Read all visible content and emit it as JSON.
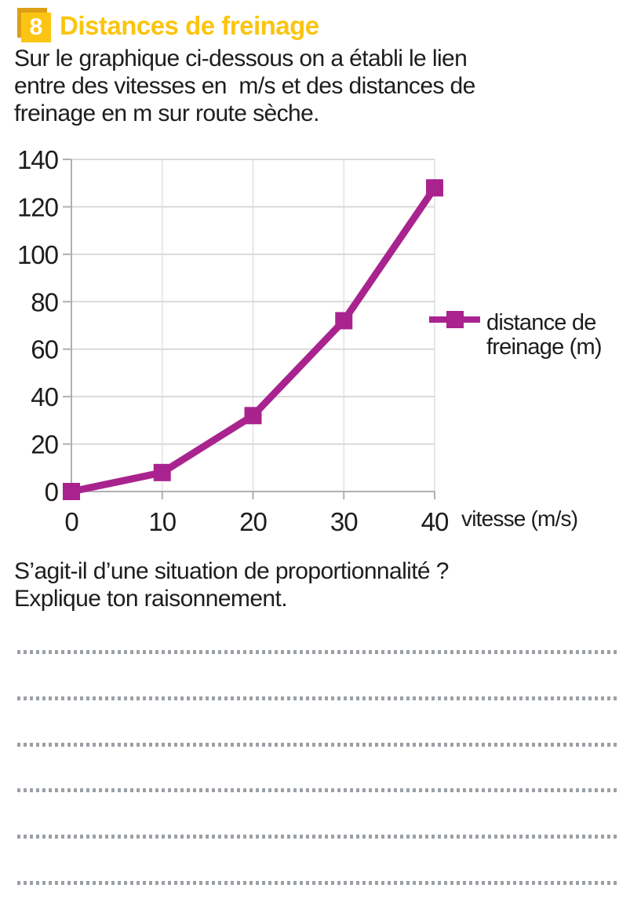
{
  "header": {
    "number": "8",
    "title": "Distances de freinage"
  },
  "intro_lines": [
    "Sur le graphique ci-dessous on a établi le lien",
    "entre des vitesses en  m/s et des distances de",
    "freinage en m sur route sèche."
  ],
  "question_lines": [
    "S’agit-il d’une situation de proportionnalité ?",
    "Explique ton raisonnement."
  ],
  "answers": {
    "count": 6
  },
  "colors": {
    "accent": "#fcc40e",
    "badge_back": "#dd9f17",
    "badge_front": "#fcc513",
    "series": "#a9238f",
    "grid": "#d9d9d9",
    "grid_vertical": "#e7e7e7",
    "axis": "#b0b0b0",
    "text": "#1d1d1b",
    "dots": "#9ba0a5"
  },
  "chart_data": {
    "type": "line",
    "x": [
      0,
      10,
      20,
      30,
      40
    ],
    "series": [
      {
        "name": "distance de freinage (m)",
        "values": [
          0,
          8,
          32,
          72,
          128
        ],
        "color": "#a9238f"
      }
    ],
    "title": "",
    "xlabel": "vitesse (m/s)",
    "ylabel": "",
    "xlim": [
      0,
      40
    ],
    "ylim": [
      0,
      140
    ],
    "xticks": [
      0,
      10,
      20,
      30,
      40
    ],
    "yticks": [
      0,
      20,
      40,
      60,
      80,
      100,
      120,
      140
    ],
    "grid": true,
    "marker": "square",
    "legend_position": "right",
    "legend_lines": [
      "distance de",
      "freinage (m)"
    ]
  }
}
